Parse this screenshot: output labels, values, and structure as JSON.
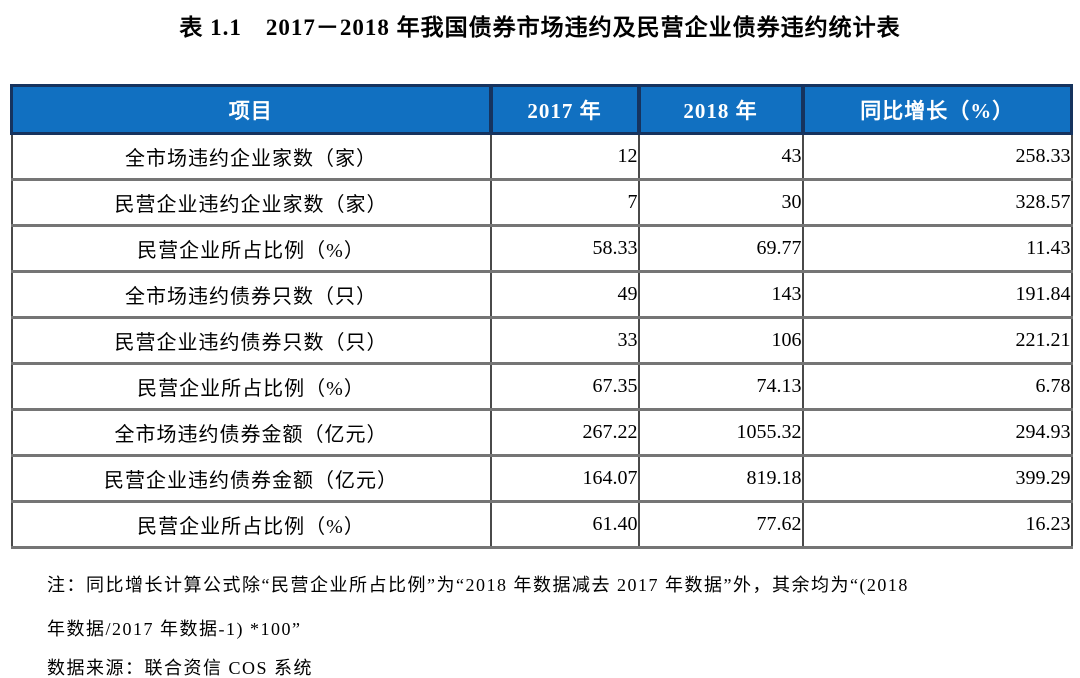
{
  "title": "表 1.1　2017－2018 年我国债券市场违约及民营企业债券违约统计表",
  "table": {
    "headers": [
      "项目",
      "2017 年",
      "2018 年",
      "同比增长（%）"
    ],
    "rows": [
      {
        "label": "全市场违约企业家数（家）",
        "v2017": "12",
        "v2018": "43",
        "growth": "258.33"
      },
      {
        "label": "民营企业违约企业家数（家）",
        "v2017": "7",
        "v2018": "30",
        "growth": "328.57"
      },
      {
        "label": "民营企业所占比例（%）",
        "v2017": "58.33",
        "v2018": "69.77",
        "growth": "11.43"
      },
      {
        "label": "全市场违约债券只数（只）",
        "v2017": "49",
        "v2018": "143",
        "growth": "191.84"
      },
      {
        "label": "民营企业违约债券只数（只）",
        "v2017": "33",
        "v2018": "106",
        "growth": "221.21"
      },
      {
        "label": "民营企业所占比例（%）",
        "v2017": "67.35",
        "v2018": "74.13",
        "growth": "6.78"
      },
      {
        "label": "全市场违约债券金额（亿元）",
        "v2017": "267.22",
        "v2018": "1055.32",
        "growth": "294.93"
      },
      {
        "label": "民营企业违约债券金额（亿元）",
        "v2017": "164.07",
        "v2018": "819.18",
        "growth": "399.29"
      },
      {
        "label": "民营企业所占比例（%）",
        "v2017": "61.40",
        "v2018": "77.62",
        "growth": "16.23"
      }
    ]
  },
  "notes": {
    "line1": "注：同比增长计算公式除“民营企业所占比例”为“2018 年数据减去 2017 年数据”外，其余均为“(2018",
    "line2": "年数据/2017 年数据-1) *100”",
    "source": "数据来源：联合资信 COS 系统"
  },
  "colors": {
    "header_bg": "#1170C1",
    "header_border": "#16335E",
    "header_text": "#FFFFFF",
    "row_separator": "#757575",
    "column_divider": "#4A4A4A"
  }
}
